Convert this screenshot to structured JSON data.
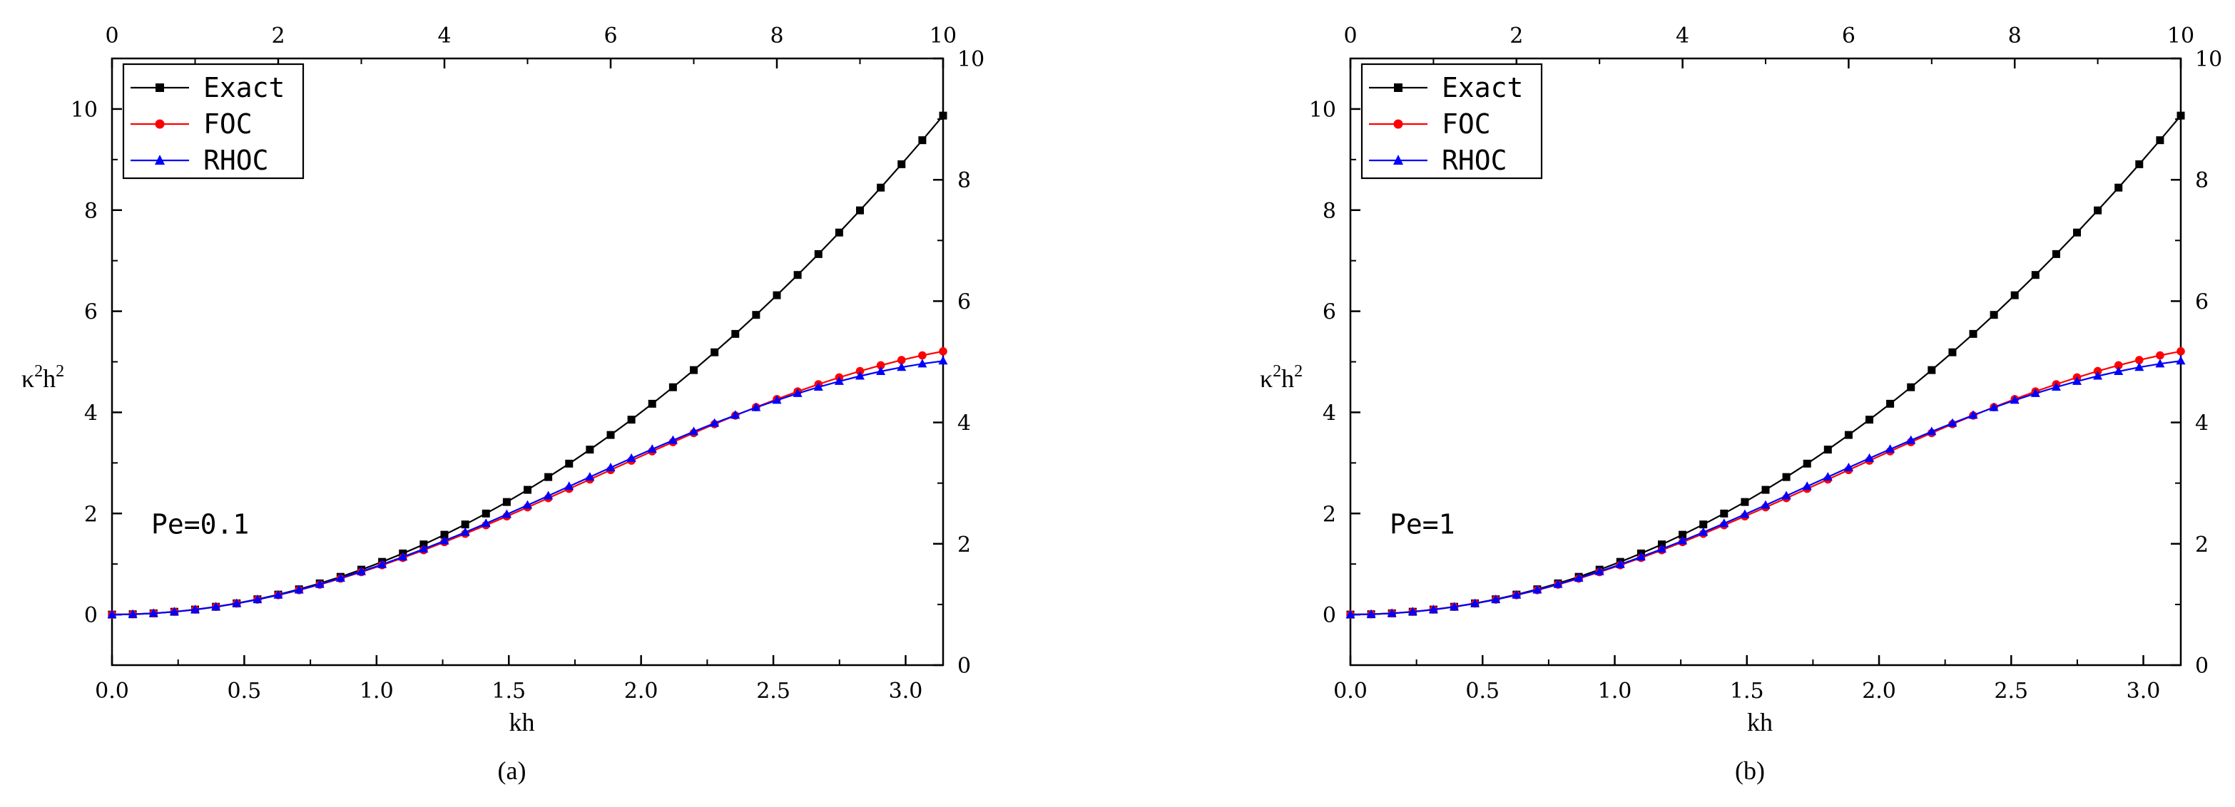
{
  "chart_data": [
    {
      "type": "line",
      "panel_label": "(a)",
      "annotation": "Pe=0.1",
      "xlabel": "kh",
      "ylabel": "κ²h²",
      "ylabel_base": "κ",
      "ylabel_sup1": "2",
      "ylabel_mid": "h",
      "ylabel_sup2": "2",
      "xlim": [
        0,
        3.14159
      ],
      "ylim": [
        -1,
        11
      ],
      "x_ticks": [
        "0.0",
        "0.5",
        "1.0",
        "1.5",
        "2.0",
        "2.5",
        "3.0"
      ],
      "y_ticks": [
        "0",
        "2",
        "4",
        "6",
        "8",
        "10"
      ],
      "top_axis": {
        "lim": [
          0,
          10
        ],
        "ticks": [
          "0",
          "2",
          "4",
          "6",
          "8",
          "10"
        ]
      },
      "right_axis": {
        "lim": [
          0,
          10
        ],
        "ticks": [
          "0",
          "2",
          "4",
          "6",
          "8",
          "10"
        ]
      },
      "legend": {
        "position": "top-left",
        "entries": [
          "Exact",
          "FOC",
          "RHOC"
        ]
      },
      "series": [
        {
          "name": "Exact",
          "color": "#000000",
          "marker": "square",
          "x_max": 3.14159,
          "x": [
            0,
            0.0785,
            0.157,
            0.2356,
            0.3142,
            0.3927,
            0.4712,
            0.5498,
            0.6283,
            0.7069,
            0.7854,
            0.8639,
            0.9425,
            1.021,
            1.0996,
            1.1781,
            1.2566,
            1.3352,
            1.4137,
            1.4923,
            1.5708,
            1.6493,
            1.7279,
            1.8064,
            1.885,
            1.9635,
            2.042,
            2.1206,
            2.1991,
            2.2777,
            2.3562,
            2.4347,
            2.5133,
            2.5918,
            2.6704,
            2.7489,
            2.8274,
            2.906,
            2.9845,
            3.0631,
            3.1416
          ],
          "y": [
            0,
            0.0062,
            0.0247,
            0.0555,
            0.0987,
            0.1542,
            0.2221,
            0.3023,
            0.3948,
            0.4997,
            0.6169,
            0.7464,
            0.8883,
            1.0425,
            1.2091,
            1.3879,
            1.5791,
            1.7827,
            1.9986,
            2.2268,
            2.4674,
            2.7203,
            2.9855,
            3.2631,
            3.553,
            3.8553,
            4.1699,
            4.4968,
            4.8361,
            5.1878,
            5.5517,
            5.928,
            6.3167,
            6.7177,
            7.131,
            7.5567,
            7.9947,
            8.4451,
            8.9078,
            9.3829,
            9.8696
          ]
        },
        {
          "name": "FOC",
          "color": "#ff0000",
          "marker": "circle",
          "x_max": 3.14159,
          "x": [
            0,
            0.0785,
            0.157,
            0.2356,
            0.3142,
            0.3927,
            0.4712,
            0.5498,
            0.6283,
            0.7069,
            0.7854,
            0.8639,
            0.9425,
            1.021,
            1.0996,
            1.1781,
            1.2566,
            1.3352,
            1.4137,
            1.4923,
            1.5708,
            1.6493,
            1.7279,
            1.8064,
            1.885,
            1.9635,
            2.042,
            2.1206,
            2.1991,
            2.2777,
            2.3562,
            2.4347,
            2.5133,
            2.5918,
            2.6704,
            2.7489,
            2.8274,
            2.906,
            2.9845,
            3.0631,
            3.1416
          ],
          "y": [
            0,
            0.0062,
            0.0246,
            0.0553,
            0.098,
            0.1526,
            0.2188,
            0.2963,
            0.3848,
            0.484,
            0.5933,
            0.7123,
            0.8405,
            0.9772,
            1.122,
            1.2742,
            1.4332,
            1.5982,
            1.7685,
            1.9435,
            2.1223,
            2.3041,
            2.4882,
            2.6737,
            2.8597,
            3.0454,
            3.2298,
            3.4121,
            3.5914,
            3.7669,
            3.9375,
            4.1026,
            4.2612,
            4.4125,
            4.5558,
            4.6903,
            4.8152,
            4.9299,
            5.0338,
            5.1263,
            5.2069
          ]
        },
        {
          "name": "RHOC",
          "color": "#0000ff",
          "marker": "triangle",
          "x_max": 3.14159,
          "x": [
            0,
            0.0785,
            0.157,
            0.2356,
            0.3142,
            0.3927,
            0.4712,
            0.5498,
            0.6283,
            0.7069,
            0.7854,
            0.8639,
            0.9425,
            1.021,
            1.0996,
            1.1781,
            1.2566,
            1.3352,
            1.4137,
            1.4923,
            1.5708,
            1.6493,
            1.7279,
            1.8064,
            1.885,
            1.9635,
            2.042,
            2.1206,
            2.1991,
            2.2777,
            2.3562,
            2.4347,
            2.5133,
            2.5918,
            2.6704,
            2.7489,
            2.8274,
            2.906,
            2.9845,
            3.0631,
            3.1416
          ],
          "y": [
            0,
            0.0062,
            0.0246,
            0.0553,
            0.0982,
            0.153,
            0.2196,
            0.2978,
            0.3874,
            0.4879,
            0.599,
            0.7203,
            0.8513,
            0.9914,
            1.1399,
            1.2961,
            1.4593,
            1.6287,
            1.8033,
            1.9823,
            2.1646,
            2.3493,
            2.5353,
            2.7215,
            2.9068,
            3.0903,
            3.2709,
            3.4475,
            3.6192,
            3.7851,
            3.9444,
            4.0962,
            4.2397,
            4.3742,
            4.4991,
            4.6137,
            4.7176,
            4.8103,
            4.8913,
            4.9603,
            5.017
          ]
        }
      ]
    },
    {
      "type": "line",
      "panel_label": "(b)",
      "annotation": "Pe=1",
      "xlabel": "kh",
      "ylabel": "κ²h²",
      "ylabel_base": "κ",
      "ylabel_sup1": "2",
      "ylabel_mid": "h",
      "ylabel_sup2": "2",
      "xlim": [
        0,
        3.14159
      ],
      "ylim": [
        -1,
        11
      ],
      "x_ticks": [
        "0.0",
        "0.5",
        "1.0",
        "1.5",
        "2.0",
        "2.5",
        "3.0"
      ],
      "y_ticks": [
        "0",
        "2",
        "4",
        "6",
        "8",
        "10"
      ],
      "top_axis": {
        "lim": [
          0,
          10
        ],
        "ticks": [
          "0",
          "2",
          "4",
          "6",
          "8",
          "10"
        ]
      },
      "right_axis": {
        "lim": [
          0,
          10
        ],
        "ticks": [
          "0",
          "2",
          "4",
          "6",
          "8",
          "10"
        ]
      },
      "legend": {
        "position": "top-left",
        "entries": [
          "Exact",
          "FOC",
          "RHOC"
        ]
      },
      "series": [
        {
          "name": "Exact",
          "color": "#000000",
          "marker": "square",
          "x": [
            0,
            0.0785,
            0.157,
            0.2356,
            0.3142,
            0.3927,
            0.4712,
            0.5498,
            0.6283,
            0.7069,
            0.7854,
            0.8639,
            0.9425,
            1.021,
            1.0996,
            1.1781,
            1.2566,
            1.3352,
            1.4137,
            1.4923,
            1.5708,
            1.6493,
            1.7279,
            1.8064,
            1.885,
            1.9635,
            2.042,
            2.1206,
            2.1991,
            2.2777,
            2.3562,
            2.4347,
            2.5133,
            2.5918,
            2.6704,
            2.7489,
            2.8274,
            2.906,
            2.9845,
            3.0631,
            3.1416
          ],
          "y": [
            0,
            0.0062,
            0.0247,
            0.0555,
            0.0987,
            0.1542,
            0.2221,
            0.3023,
            0.3948,
            0.4997,
            0.6169,
            0.7464,
            0.8883,
            1.0425,
            1.2091,
            1.3879,
            1.5791,
            1.7827,
            1.9986,
            2.2268,
            2.4674,
            2.7203,
            2.9855,
            3.2631,
            3.553,
            3.8553,
            4.1699,
            4.4968,
            4.8361,
            5.1878,
            5.5517,
            5.928,
            6.3167,
            6.7177,
            7.131,
            7.5567,
            7.9947,
            8.4451,
            8.9078,
            9.3829,
            9.8696
          ]
        },
        {
          "name": "FOC",
          "color": "#ff0000",
          "marker": "circle",
          "x": [
            0,
            0.0785,
            0.157,
            0.2356,
            0.3142,
            0.3927,
            0.4712,
            0.5498,
            0.6283,
            0.7069,
            0.7854,
            0.8639,
            0.9425,
            1.021,
            1.0996,
            1.1781,
            1.2566,
            1.3352,
            1.4137,
            1.4923,
            1.5708,
            1.6493,
            1.7279,
            1.8064,
            1.885,
            1.9635,
            2.042,
            2.1206,
            2.1991,
            2.2777,
            2.3562,
            2.4347,
            2.5133,
            2.5918,
            2.6704,
            2.7489,
            2.8274,
            2.906,
            2.9845,
            3.0631,
            3.1416
          ],
          "y": [
            0,
            0.0062,
            0.0246,
            0.0553,
            0.098,
            0.1526,
            0.2188,
            0.2963,
            0.3848,
            0.484,
            0.5933,
            0.7123,
            0.8405,
            0.9772,
            1.122,
            1.2742,
            1.4332,
            1.5982,
            1.7685,
            1.9435,
            2.1223,
            2.3041,
            2.4882,
            2.6737,
            2.8597,
            3.0454,
            3.2298,
            3.4121,
            3.5914,
            3.7669,
            3.9375,
            4.1026,
            4.2612,
            4.4125,
            4.5558,
            4.6903,
            4.8152,
            4.9299,
            5.0338,
            5.1263,
            5.2069
          ]
        },
        {
          "name": "RHOC",
          "color": "#0000ff",
          "marker": "triangle",
          "x": [
            0,
            0.0785,
            0.157,
            0.2356,
            0.3142,
            0.3927,
            0.4712,
            0.5498,
            0.6283,
            0.7069,
            0.7854,
            0.8639,
            0.9425,
            1.021,
            1.0996,
            1.1781,
            1.2566,
            1.3352,
            1.4137,
            1.4923,
            1.5708,
            1.6493,
            1.7279,
            1.8064,
            1.885,
            1.9635,
            2.042,
            2.1206,
            2.1991,
            2.2777,
            2.3562,
            2.4347,
            2.5133,
            2.5918,
            2.6704,
            2.7489,
            2.8274,
            2.906,
            2.9845,
            3.0631,
            3.1416
          ],
          "y": [
            0,
            0.0062,
            0.0246,
            0.0553,
            0.0982,
            0.153,
            0.2196,
            0.2978,
            0.3874,
            0.4879,
            0.599,
            0.7203,
            0.8513,
            0.9914,
            1.1399,
            1.2961,
            1.4593,
            1.6287,
            1.8033,
            1.9823,
            2.1646,
            2.3493,
            2.5353,
            2.7215,
            2.9068,
            3.0903,
            3.2709,
            3.4475,
            3.6192,
            3.7851,
            3.9444,
            4.0962,
            4.2397,
            4.3742,
            4.4991,
            4.6137,
            4.7176,
            4.8103,
            4.8913,
            4.9603,
            5.017
          ]
        }
      ]
    }
  ]
}
